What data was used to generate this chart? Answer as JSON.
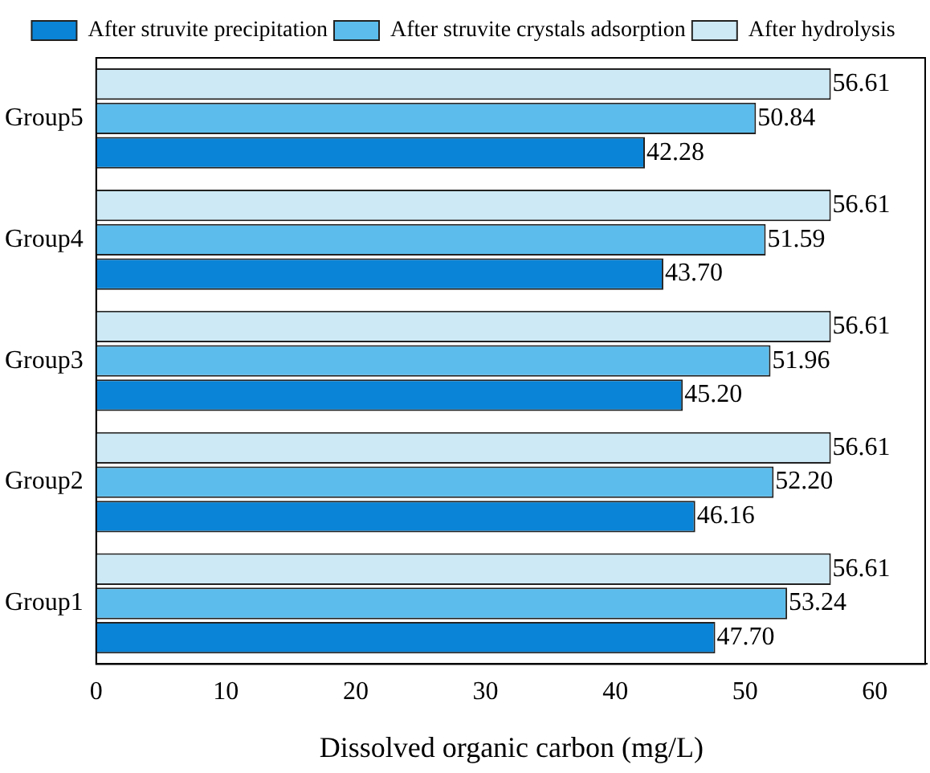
{
  "chart_data": {
    "type": "bar",
    "orientation": "horizontal",
    "xlabel": "Dissolved organic carbon (mg/L)",
    "categories": [
      "Group5",
      "Group4",
      "Group3",
      "Group2",
      "Group1"
    ],
    "series": [
      {
        "name": "After struvite precipitation",
        "color": "#0a84d6",
        "values": [
          42.28,
          43.7,
          45.2,
          46.16,
          47.7
        ],
        "value_labels": [
          "42.28",
          "43.70",
          "45.20",
          "46.16",
          "47.70"
        ]
      },
      {
        "name": "After struvite crystals adsorption",
        "color": "#5cbdec",
        "values": [
          50.84,
          51.59,
          51.96,
          52.2,
          53.24
        ],
        "value_labels": [
          "50.84",
          "51.59",
          "51.96",
          "52.20",
          "53.24"
        ]
      },
      {
        "name": "After hydrolysis",
        "color": "#cde9f5",
        "values": [
          56.61,
          56.61,
          56.61,
          56.61,
          56.61
        ],
        "value_labels": [
          "56.61",
          "56.61",
          "56.61",
          "56.61",
          "56.61"
        ]
      }
    ],
    "xlim": [
      0,
      64
    ],
    "xticks": [
      0,
      10,
      20,
      30,
      40,
      50,
      60
    ],
    "grid": false,
    "legend": "top"
  }
}
